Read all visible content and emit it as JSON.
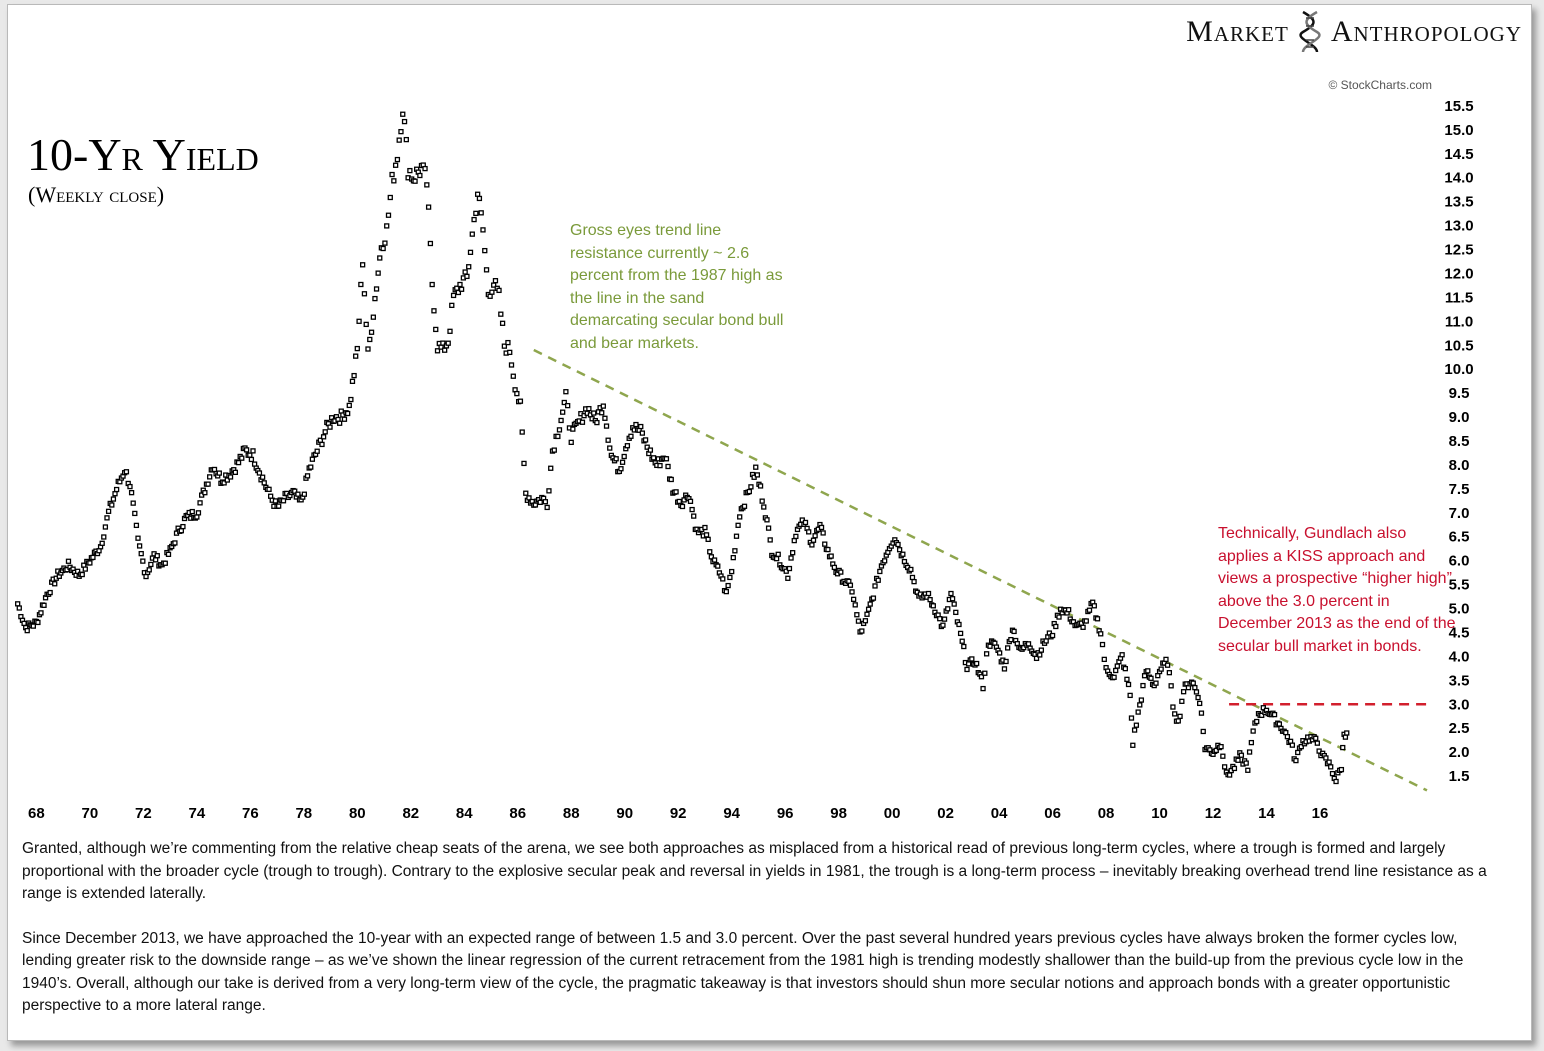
{
  "brand": {
    "left": "Market",
    "right": "Anthropology",
    "icon": "dna-helix-icon"
  },
  "copyright": "© StockCharts.com",
  "colors": {
    "trend": "#8fa64e",
    "resistance": "#d21f2d",
    "green_text": "#7a9a3a",
    "red_text": "#c8102e",
    "series": "#000000"
  },
  "chart_data": {
    "type": "scatter",
    "title": "10-Yr Yield",
    "subtitle": "(Weekly close)",
    "x_labels": [
      "68",
      "70",
      "72",
      "74",
      "76",
      "78",
      "80",
      "82",
      "84",
      "86",
      "88",
      "90",
      "92",
      "94",
      "96",
      "98",
      "00",
      "02",
      "04",
      "06",
      "08",
      "10",
      "12",
      "14",
      "16"
    ],
    "x_years": [
      1968,
      1970,
      1972,
      1974,
      1976,
      1978,
      1980,
      1982,
      1984,
      1986,
      1988,
      1990,
      1992,
      1994,
      1996,
      1998,
      2000,
      2002,
      2004,
      2006,
      2008,
      2010,
      2012,
      2014,
      2016
    ],
    "xlim": [
      1967.2,
      2020.3
    ],
    "y_ticks": [
      "15.5",
      "15.0",
      "14.5",
      "14.0",
      "13.5",
      "13.0",
      "12.5",
      "12.0",
      "11.5",
      "11.0",
      "10.5",
      "10.0",
      "9.5",
      "9.0",
      "8.5",
      "8.0",
      "7.5",
      "7.0",
      "6.5",
      "6.0",
      "5.5",
      "5.0",
      "4.5",
      "4.0",
      "3.5",
      "3.0",
      "2.5",
      "2.0",
      "1.5"
    ],
    "y_tick_values": [
      15.5,
      15.0,
      14.5,
      14.0,
      13.5,
      13.0,
      12.5,
      12.0,
      11.5,
      11.0,
      10.5,
      10.0,
      9.5,
      9.0,
      8.5,
      8.0,
      7.5,
      7.0,
      6.5,
      6.0,
      5.5,
      5.0,
      4.5,
      4.0,
      3.5,
      3.0,
      2.5,
      2.0,
      1.5
    ],
    "ylim": [
      1.0,
      16.0
    ],
    "y_axis_side": "right",
    "grid": false,
    "series": [
      {
        "values": [
          [
            1967.3,
            5.1
          ],
          [
            1967.6,
            4.6
          ],
          [
            1968.0,
            4.7
          ],
          [
            1968.4,
            5.3
          ],
          [
            1968.8,
            5.7
          ],
          [
            1969.2,
            5.9
          ],
          [
            1969.6,
            5.7
          ],
          [
            1970.0,
            6.0
          ],
          [
            1970.4,
            6.3
          ],
          [
            1970.7,
            7.0
          ],
          [
            1971.0,
            7.5
          ],
          [
            1971.3,
            7.9
          ],
          [
            1971.5,
            7.6
          ],
          [
            1971.8,
            6.4
          ],
          [
            1972.1,
            5.7
          ],
          [
            1972.4,
            6.1
          ],
          [
            1972.7,
            5.9
          ],
          [
            1973.0,
            6.2
          ],
          [
            1973.3,
            6.6
          ],
          [
            1973.6,
            6.9
          ],
          [
            1974.0,
            7.0
          ],
          [
            1974.3,
            7.5
          ],
          [
            1974.6,
            8.0
          ],
          [
            1974.9,
            7.7
          ],
          [
            1975.2,
            7.8
          ],
          [
            1975.5,
            8.0
          ],
          [
            1975.8,
            8.3
          ],
          [
            1976.1,
            8.2
          ],
          [
            1976.4,
            7.8
          ],
          [
            1976.7,
            7.4
          ],
          [
            1977.0,
            7.1
          ],
          [
            1977.3,
            7.3
          ],
          [
            1977.6,
            7.4
          ],
          [
            1977.9,
            7.2
          ],
          [
            1978.2,
            7.9
          ],
          [
            1978.5,
            8.3
          ],
          [
            1978.8,
            8.7
          ],
          [
            1979.1,
            9.0
          ],
          [
            1979.4,
            9.0
          ],
          [
            1979.7,
            9.2
          ],
          [
            1980.0,
            10.4
          ],
          [
            1980.2,
            12.3
          ],
          [
            1980.4,
            10.3
          ],
          [
            1980.6,
            11.2
          ],
          [
            1980.9,
            12.6
          ],
          [
            1981.1,
            12.9
          ],
          [
            1981.3,
            13.9
          ],
          [
            1981.5,
            14.5
          ],
          [
            1981.7,
            15.5
          ],
          [
            1981.9,
            14.2
          ],
          [
            1982.1,
            14.0
          ],
          [
            1982.4,
            14.2
          ],
          [
            1982.6,
            13.9
          ],
          [
            1982.8,
            11.8
          ],
          [
            1983.0,
            10.5
          ],
          [
            1983.2,
            10.4
          ],
          [
            1983.4,
            10.6
          ],
          [
            1983.6,
            11.5
          ],
          [
            1983.9,
            11.8
          ],
          [
            1984.1,
            11.9
          ],
          [
            1984.3,
            12.8
          ],
          [
            1984.5,
            13.7
          ],
          [
            1984.7,
            12.9
          ],
          [
            1984.9,
            11.6
          ],
          [
            1985.1,
            11.8
          ],
          [
            1985.3,
            11.5
          ],
          [
            1985.5,
            10.5
          ],
          [
            1985.7,
            10.4
          ],
          [
            1985.9,
            9.7
          ],
          [
            1986.1,
            9.2
          ],
          [
            1986.3,
            7.4
          ],
          [
            1986.6,
            7.2
          ],
          [
            1986.9,
            7.3
          ],
          [
            1987.1,
            7.2
          ],
          [
            1987.3,
            8.3
          ],
          [
            1987.5,
            8.7
          ],
          [
            1987.8,
            9.4
          ],
          [
            1988.0,
            8.6
          ],
          [
            1988.3,
            8.9
          ],
          [
            1988.6,
            9.2
          ],
          [
            1988.9,
            8.9
          ],
          [
            1989.2,
            9.3
          ],
          [
            1989.5,
            8.2
          ],
          [
            1989.8,
            7.9
          ],
          [
            1990.1,
            8.5
          ],
          [
            1990.3,
            8.8
          ],
          [
            1990.6,
            8.7
          ],
          [
            1990.9,
            8.3
          ],
          [
            1991.2,
            8.0
          ],
          [
            1991.5,
            8.2
          ],
          [
            1991.8,
            7.5
          ],
          [
            1992.1,
            7.2
          ],
          [
            1992.4,
            7.4
          ],
          [
            1992.7,
            6.6
          ],
          [
            1993.0,
            6.6
          ],
          [
            1993.3,
            6.0
          ],
          [
            1993.6,
            5.7
          ],
          [
            1993.8,
            5.3
          ],
          [
            1994.0,
            5.8
          ],
          [
            1994.3,
            7.0
          ],
          [
            1994.6,
            7.4
          ],
          [
            1994.9,
            7.9
          ],
          [
            1995.2,
            7.2
          ],
          [
            1995.5,
            6.2
          ],
          [
            1995.8,
            6.0
          ],
          [
            1996.1,
            5.7
          ],
          [
            1996.4,
            6.6
          ],
          [
            1996.7,
            6.8
          ],
          [
            1997.0,
            6.4
          ],
          [
            1997.3,
            6.7
          ],
          [
            1997.6,
            6.2
          ],
          [
            1997.9,
            5.8
          ],
          [
            1998.2,
            5.6
          ],
          [
            1998.5,
            5.4
          ],
          [
            1998.8,
            4.5
          ],
          [
            1999.0,
            4.7
          ],
          [
            1999.3,
            5.3
          ],
          [
            1999.6,
            5.9
          ],
          [
            1999.9,
            6.3
          ],
          [
            2000.1,
            6.5
          ],
          [
            2000.4,
            6.1
          ],
          [
            2000.7,
            5.8
          ],
          [
            2001.0,
            5.2
          ],
          [
            2001.3,
            5.3
          ],
          [
            2001.6,
            5.0
          ],
          [
            2001.9,
            4.6
          ],
          [
            2002.2,
            5.3
          ],
          [
            2002.5,
            4.6
          ],
          [
            2002.8,
            3.8
          ],
          [
            2003.1,
            3.9
          ],
          [
            2003.4,
            3.4
          ],
          [
            2003.6,
            4.3
          ],
          [
            2003.9,
            4.2
          ],
          [
            2004.2,
            3.8
          ],
          [
            2004.5,
            4.6
          ],
          [
            2004.8,
            4.1
          ],
          [
            2005.1,
            4.3
          ],
          [
            2005.4,
            4.0
          ],
          [
            2005.7,
            4.3
          ],
          [
            2006.0,
            4.5
          ],
          [
            2006.3,
            5.0
          ],
          [
            2006.6,
            4.9
          ],
          [
            2006.9,
            4.6
          ],
          [
            2007.2,
            4.7
          ],
          [
            2007.5,
            5.1
          ],
          [
            2007.8,
            4.5
          ],
          [
            2008.0,
            3.7
          ],
          [
            2008.3,
            3.6
          ],
          [
            2008.6,
            4.0
          ],
          [
            2008.9,
            3.2
          ],
          [
            2009.0,
            2.2
          ],
          [
            2009.2,
            2.8
          ],
          [
            2009.5,
            3.7
          ],
          [
            2009.8,
            3.4
          ],
          [
            2010.0,
            3.7
          ],
          [
            2010.3,
            3.9
          ],
          [
            2010.5,
            3.0
          ],
          [
            2010.7,
            2.6
          ],
          [
            2010.9,
            3.3
          ],
          [
            2011.2,
            3.5
          ],
          [
            2011.5,
            3.1
          ],
          [
            2011.7,
            2.1
          ],
          [
            2012.0,
            2.0
          ],
          [
            2012.3,
            2.2
          ],
          [
            2012.5,
            1.5
          ],
          [
            2012.8,
            1.7
          ],
          [
            2013.0,
            1.9
          ],
          [
            2013.3,
            1.7
          ],
          [
            2013.5,
            2.4
          ],
          [
            2013.7,
            2.8
          ],
          [
            2014.0,
            2.9
          ],
          [
            2014.3,
            2.7
          ],
          [
            2014.6,
            2.5
          ],
          [
            2014.9,
            2.2
          ],
          [
            2015.1,
            1.8
          ],
          [
            2015.3,
            2.2
          ],
          [
            2015.6,
            2.3
          ],
          [
            2015.9,
            2.2
          ],
          [
            2016.1,
            1.9
          ],
          [
            2016.4,
            1.7
          ],
          [
            2016.6,
            1.4
          ],
          [
            2016.8,
            1.7
          ],
          [
            2016.9,
            2.4
          ],
          [
            2017.0,
            2.4
          ]
        ]
      }
    ],
    "trend_line": {
      "start": [
        1986.6,
        10.4
      ],
      "end": [
        2020.0,
        1.2
      ]
    },
    "resistance_line": {
      "y": 3.0,
      "x_start": 2012.6,
      "x_end": 2020.1
    },
    "annotations": {
      "green": "Gross eyes trend line resistance currently ~ 2.6 percent from the 1987 high as the line in the sand demarcating secular bond bull and bear markets.",
      "red": "Technically, Gundlach also applies a KISS approach and views a prospective “higher high” above the 3.0 percent in December 2013 as the end of the secular bull market in bonds."
    }
  },
  "commentary": [
    "Granted, although we’re commenting from the relative cheap seats of the arena, we see both approaches as misplaced from a historical read of previous long-term cycles, where a trough is formed and largely proportional with the broader cycle (trough to trough). Contrary to the explosive secular peak and reversal in yields in 1981, the trough is a long-term process – inevitably breaking overhead trend line resistance as a range is extended laterally.",
    "Since December 2013, we have approached the 10-year with an expected range of between 1.5 and 3.0 percent. Over the past several hundred years previous cycles have always broken the former cycles low, lending greater risk to the downside range – as we’ve shown the linear regression of the current retracement from the 1981 high is trending modestly shallower than the build-up from the previous cycle low in the 1940’s.  Overall, although our take is derived from a very long-term view of the cycle, the pragmatic takeaway is that investors should shun more secular notions and approach bonds with a greater opportunistic perspective to a more lateral range."
  ]
}
